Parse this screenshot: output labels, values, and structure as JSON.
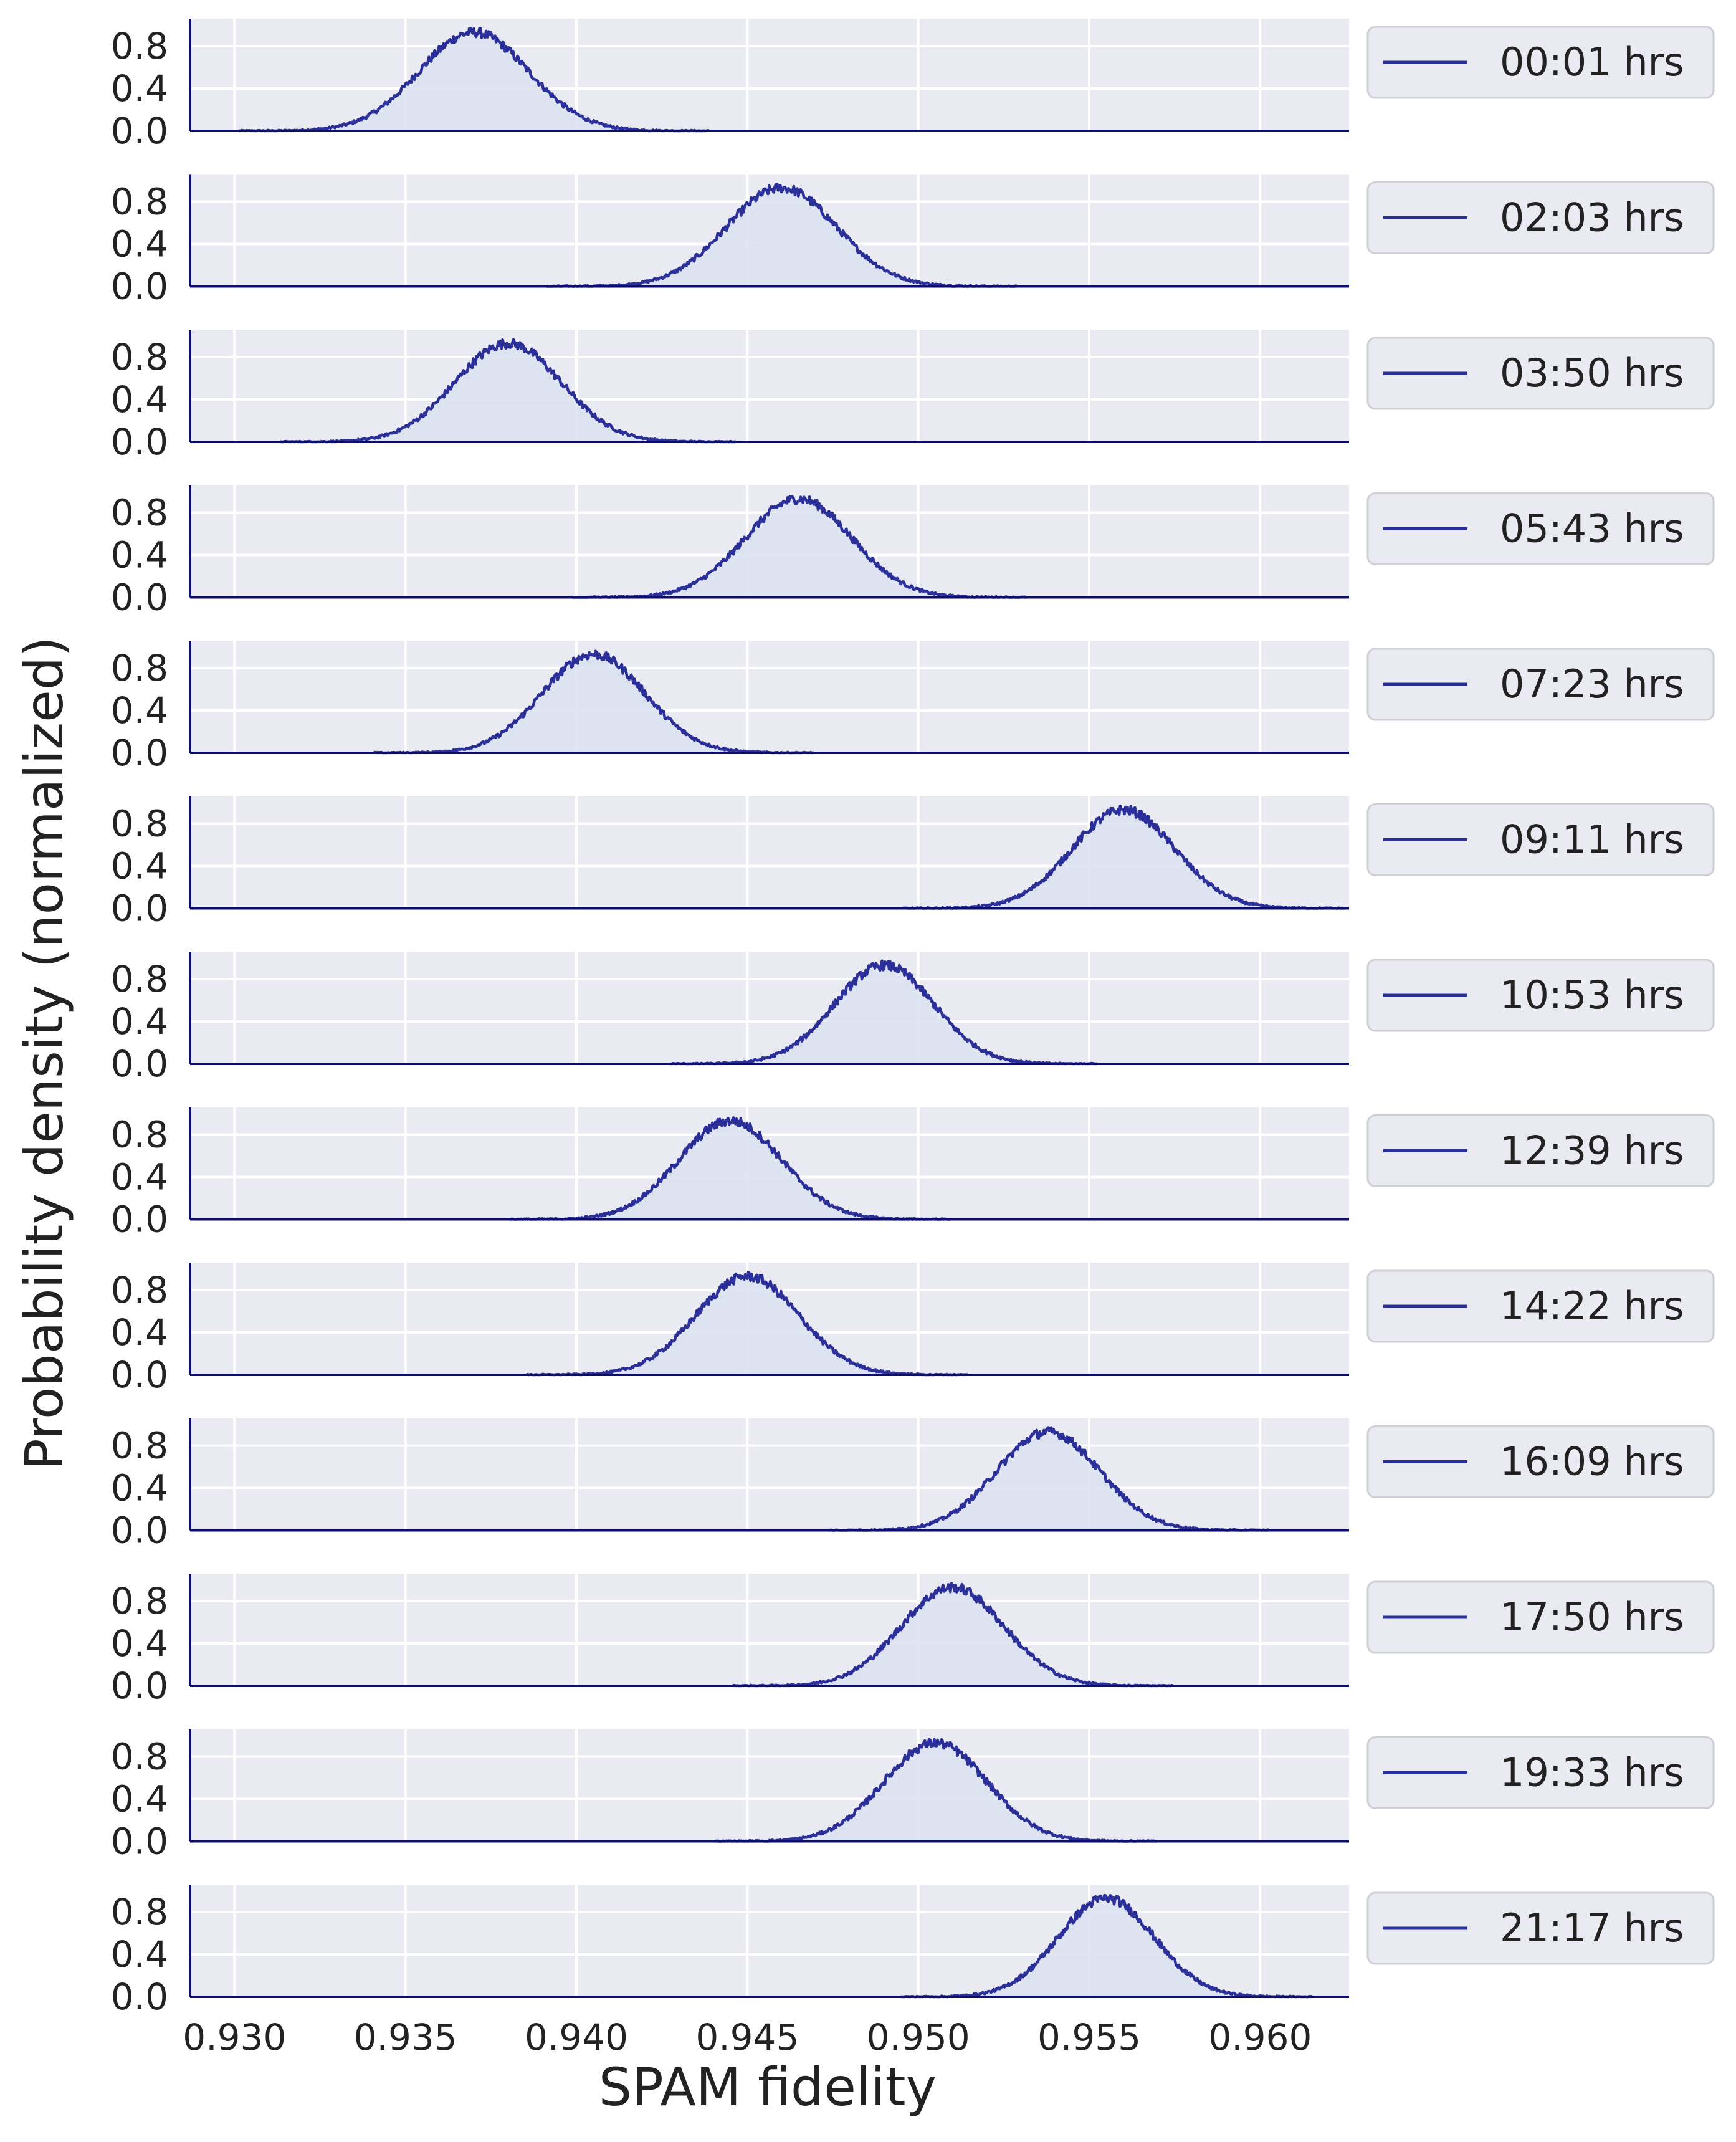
{
  "chart_data": {
    "type": "area",
    "ylabel": "Probability density (normalized)",
    "xlabel": "SPAM fidelity",
    "xlim": [
      0.9287,
      0.9626
    ],
    "ylim": [
      0.0,
      1.0
    ],
    "x_ticks": [
      0.93,
      0.935,
      0.94,
      0.945,
      0.95,
      0.955,
      0.96
    ],
    "x_tick_labels": [
      "0.930",
      "0.935",
      "0.940",
      "0.945",
      "0.950",
      "0.955",
      "0.960"
    ],
    "y_ticks": [
      0.0,
      0.4,
      0.8
    ],
    "y_tick_labels": [
      "0.0",
      "0.4",
      "0.8"
    ],
    "grid": true,
    "legend_placement": "outside-right",
    "line_color": "#2b2f99",
    "fill_color": "#dbe2ef",
    "panel_bg": "#eaeaf2",
    "axis_color": "#0d0d6b",
    "series": [
      {
        "name": "00:01 hrs",
        "mean": 0.937,
        "std": 0.0016
      },
      {
        "name": "02:03 hrs",
        "mean": 0.946,
        "std": 0.0016
      },
      {
        "name": "03:50 hrs",
        "mean": 0.938,
        "std": 0.00155
      },
      {
        "name": "05:43 hrs",
        "mean": 0.9465,
        "std": 0.00155
      },
      {
        "name": "07:23 hrs",
        "mean": 0.9405,
        "std": 0.0015
      },
      {
        "name": "09:11 hrs",
        "mean": 0.956,
        "std": 0.0015
      },
      {
        "name": "10:53 hrs",
        "mean": 0.949,
        "std": 0.00145
      },
      {
        "name": "12:39 hrs",
        "mean": 0.9445,
        "std": 0.0015
      },
      {
        "name": "14:22 hrs",
        "mean": 0.945,
        "std": 0.0015
      },
      {
        "name": "16:09 hrs",
        "mean": 0.9538,
        "std": 0.0015
      },
      {
        "name": "17:50 hrs",
        "mean": 0.951,
        "std": 0.0015
      },
      {
        "name": "19:33 hrs",
        "mean": 0.9505,
        "std": 0.0015
      },
      {
        "name": "21:17 hrs",
        "mean": 0.9555,
        "std": 0.0014
      }
    ]
  }
}
